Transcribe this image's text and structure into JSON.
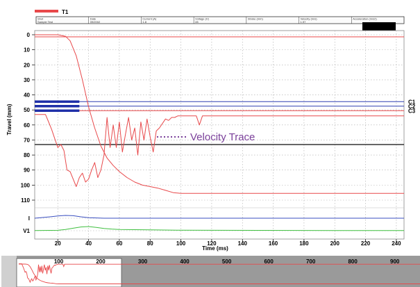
{
  "chart_data": {
    "type": "line",
    "legend": {
      "label": "T1",
      "color": "#e8484a",
      "placement": "top-left"
    },
    "xlabel": "Time (ms)",
    "ylabel": "Travel (mm)",
    "x_ticks": [
      20,
      40,
      60,
      80,
      100,
      120,
      140,
      160,
      180,
      200,
      220,
      240
    ],
    "y_ticks": [
      0,
      10,
      20,
      30,
      40,
      50,
      60,
      70,
      80,
      90,
      100,
      110
    ],
    "xlim": [
      5,
      245
    ],
    "ylim": [
      -3,
      118
    ],
    "lower_channel_labels": [
      "I",
      "V1"
    ],
    "contact_labels": [
      "C1",
      "C2",
      "C3"
    ],
    "contact_levels": [
      44.5,
      47.5,
      50.5
    ],
    "reference_level": 74,
    "grid": true,
    "info_strip": [
      {
        "header": "Shot",
        "value": "Sample Test"
      },
      {
        "header": "Date",
        "value": "09/2002"
      },
      {
        "header": "Current (A)",
        "value": "1.8"
      },
      {
        "header": "Voltage (V)",
        "value": "28"
      },
      {
        "header": "Stroke (mm)",
        "value": ""
      },
      {
        "header": "Velocity (m/s)",
        "value": "1.97"
      },
      {
        "header": "Acceleration (m/s2)",
        "value": ""
      }
    ],
    "annotation": "Velocity Trace",
    "series": [
      {
        "name": "T1",
        "color": "#e8484a",
        "x": [
          5,
          20,
          25,
          28,
          32,
          36,
          40,
          44,
          48,
          52,
          56,
          60,
          65,
          70,
          75,
          80,
          85,
          90,
          95,
          100,
          110,
          130,
          160,
          200,
          245
        ],
        "y": [
          0,
          0,
          1,
          4,
          14,
          30,
          48,
          62,
          74,
          82,
          87,
          91,
          95,
          98,
          100,
          101,
          102,
          103.5,
          105,
          105.5,
          105.5,
          105.5,
          105.5,
          105.5,
          105.5
        ]
      },
      {
        "name": "Velocity",
        "color": "#e8484a",
        "x": [
          5,
          12,
          14,
          16,
          18,
          20,
          22,
          24,
          26,
          28,
          30,
          32,
          34,
          36,
          38,
          40,
          42,
          44,
          46,
          48,
          50,
          52,
          54,
          56,
          58,
          60,
          62,
          64,
          66,
          68,
          70,
          72,
          74,
          76,
          78,
          80,
          82,
          84,
          86,
          88,
          90,
          92,
          94,
          96,
          98,
          100,
          104,
          108,
          110,
          112,
          114,
          118,
          245
        ],
        "y": [
          53,
          53,
          58,
          63,
          69,
          75,
          73,
          77,
          90,
          91,
          96,
          101,
          95,
          92,
          98,
          96,
          90,
          85,
          95,
          90,
          80,
          55,
          75,
          60,
          75,
          58,
          78,
          66,
          55,
          70,
          62,
          80,
          58,
          70,
          56,
          68,
          78,
          64,
          62,
          59,
          56,
          57,
          55,
          55,
          54,
          54,
          54,
          54,
          54,
          60,
          54,
          54,
          54
        ]
      },
      {
        "name": "I",
        "color": "#3a4fc0",
        "x": [
          5,
          15,
          20,
          25,
          30,
          35,
          40,
          50,
          245
        ],
        "y": [
          0,
          0.5,
          0.8,
          1.0,
          0.9,
          0.5,
          0.2,
          0,
          0
        ]
      },
      {
        "name": "V1",
        "color": "#3fbf3f",
        "x": [
          5,
          20,
          25,
          30,
          35,
          40,
          45,
          50,
          55,
          60,
          80,
          100,
          150,
          200,
          245
        ],
        "y": [
          0.05,
          0.1,
          0.3,
          0.6,
          0.9,
          1.0,
          0.8,
          0.55,
          0.4,
          0.3,
          0.2,
          0.12,
          0.08,
          0.05,
          0.05
        ]
      }
    ],
    "overview": {
      "x_ticks": [
        100,
        200,
        300,
        400,
        500,
        600,
        700,
        800,
        900
      ],
      "xlim": [
        0,
        960
      ],
      "window": [
        0,
        240
      ]
    }
  }
}
